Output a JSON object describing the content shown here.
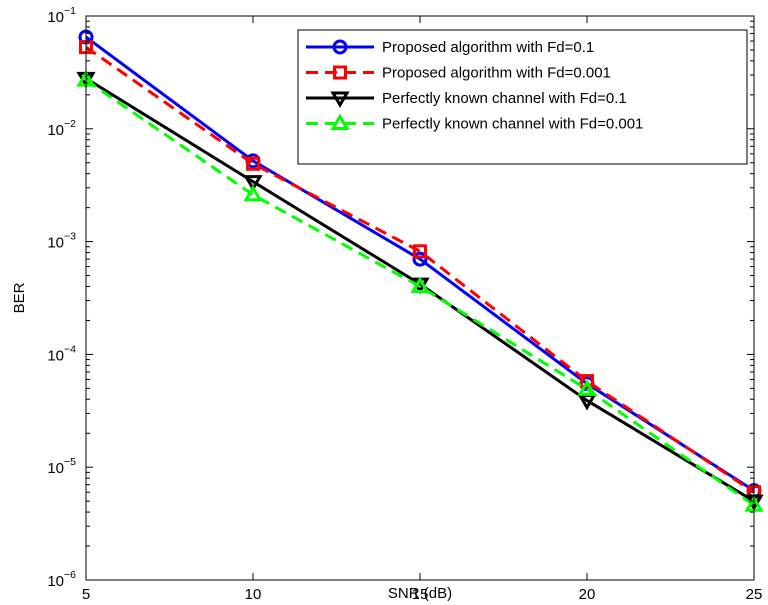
{
  "chart_data": {
    "type": "line",
    "title": "",
    "xlabel": "SNR (dB)",
    "ylabel": "BER",
    "x": [
      5,
      10,
      15,
      20,
      25
    ],
    "xlim": [
      5,
      25
    ],
    "ylim": [
      1e-06,
      0.1
    ],
    "yscale": "log",
    "grid": false,
    "legend_position": "top-right",
    "x_ticks": [
      "5",
      "10",
      "15",
      "20",
      "25"
    ],
    "y_ticks": [
      {
        "value": 1e-06,
        "base": "10",
        "exp": "−6"
      },
      {
        "value": 1e-05,
        "base": "10",
        "exp": "−5"
      },
      {
        "value": 0.0001,
        "base": "10",
        "exp": "−4"
      },
      {
        "value": 0.001,
        "base": "10",
        "exp": "−3"
      },
      {
        "value": 0.01,
        "base": "10",
        "exp": "−2"
      },
      {
        "value": 0.1,
        "base": "10",
        "exp": "−1"
      }
    ],
    "series": [
      {
        "name": "Proposed algorithm with Fd=0.1",
        "color": "#0000ff",
        "dash": "solid",
        "marker": "circle",
        "values": [
          0.065,
          0.0052,
          0.0007,
          5.5e-05,
          6.2e-06
        ]
      },
      {
        "name": "Proposed algorithm with Fd=0.001",
        "color": "#ff0000",
        "dash": "dashed",
        "marker": "square",
        "values": [
          0.053,
          0.0049,
          0.00082,
          5.8e-05,
          6e-06
        ]
      },
      {
        "name": "Perfectly known channel with Fd=0.1",
        "color": "#000000",
        "dash": "solid",
        "marker": "triangle-down",
        "values": [
          0.028,
          0.0034,
          0.00042,
          3.9e-05,
          5e-06
        ]
      },
      {
        "name": "Perfectly known channel with Fd=0.001",
        "color": "#00ff00",
        "dash": "dashed",
        "marker": "triangle-up",
        "values": [
          0.027,
          0.0026,
          0.0004,
          4.9e-05,
          4.6e-06
        ]
      }
    ]
  }
}
